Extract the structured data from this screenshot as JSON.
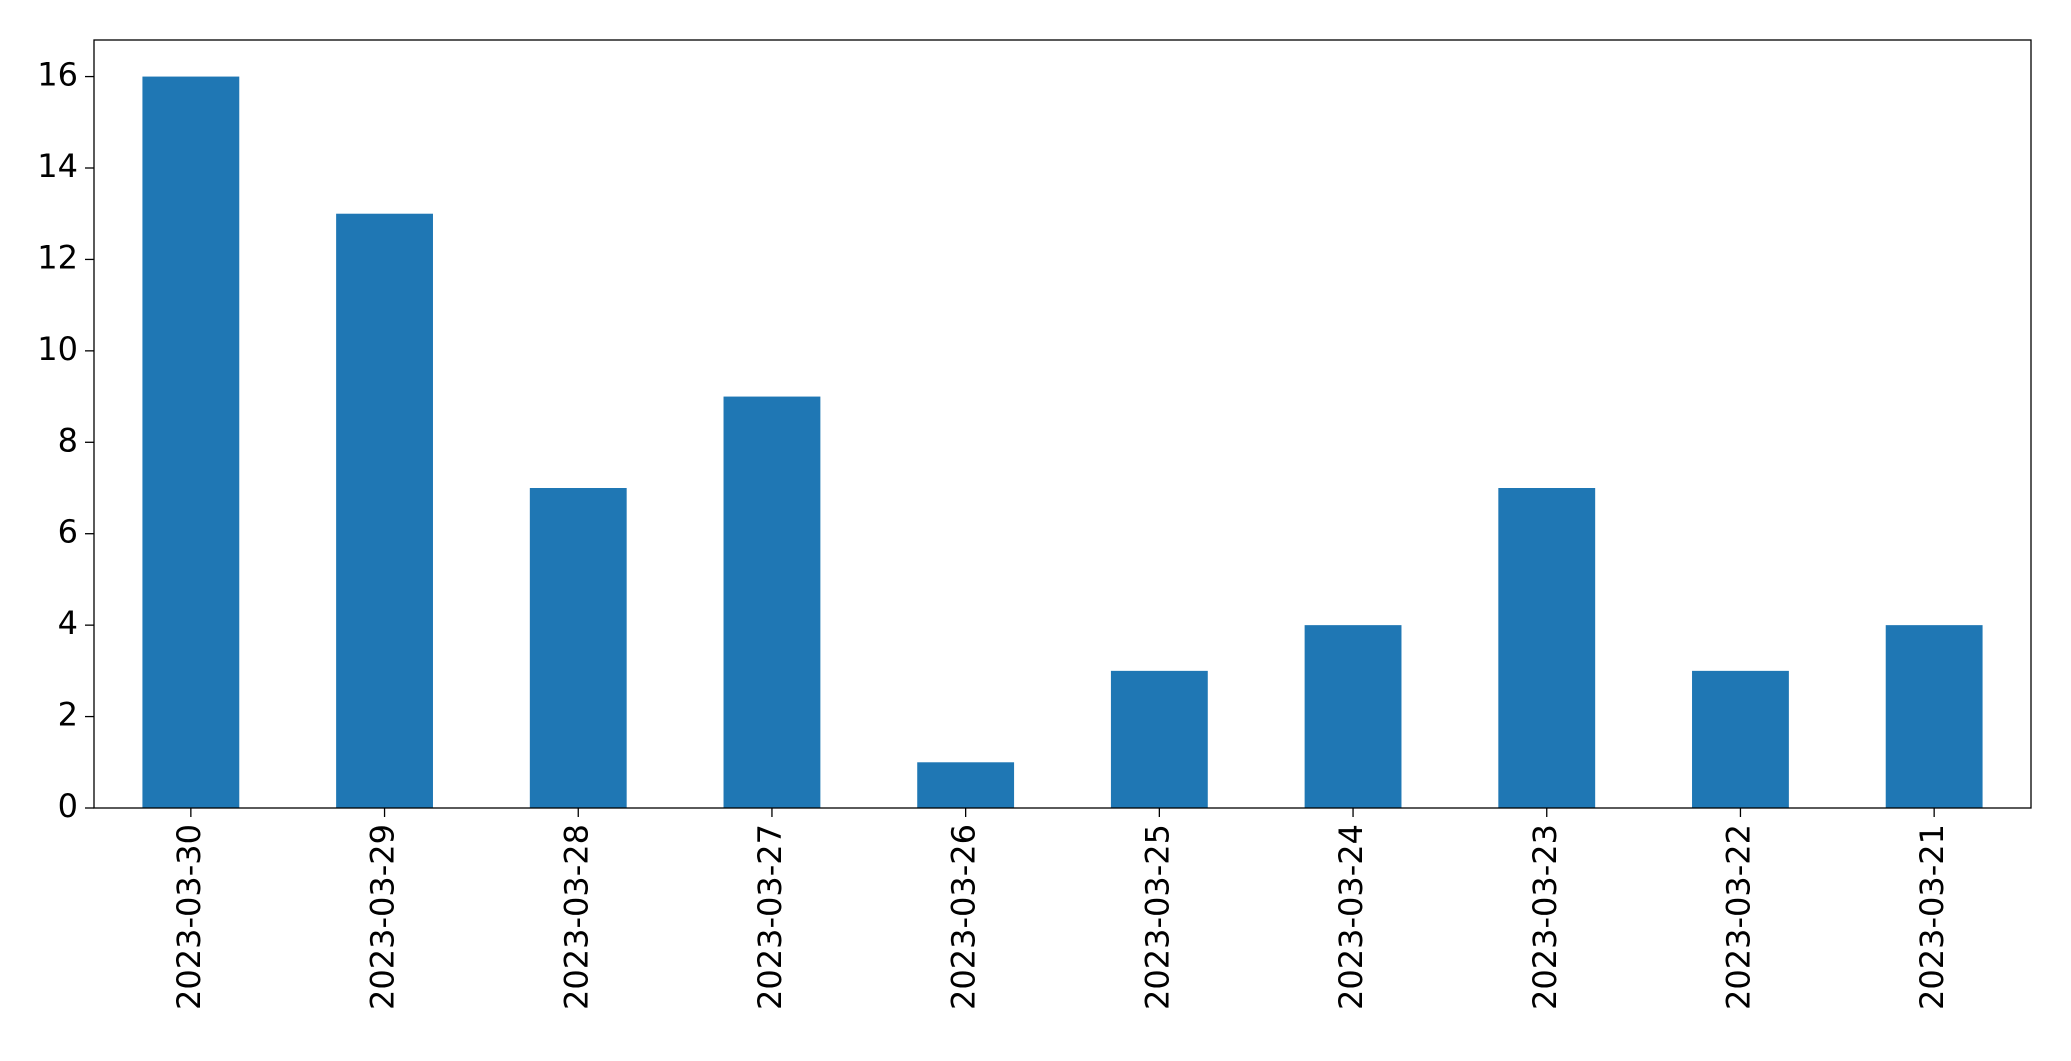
{
  "chart_data": {
    "type": "bar",
    "categories": [
      "2023-03-30",
      "2023-03-29",
      "2023-03-28",
      "2023-03-27",
      "2023-03-26",
      "2023-03-25",
      "2023-03-24",
      "2023-03-23",
      "2023-03-22",
      "2023-03-21"
    ],
    "values": [
      16,
      13,
      7,
      9,
      1,
      3,
      4,
      7,
      3,
      4
    ],
    "color": "#1f77b4",
    "ylim": [
      0,
      16.8
    ],
    "yticks": [
      0,
      2,
      4,
      6,
      8,
      10,
      12,
      14,
      16
    ],
    "grid": false
  }
}
